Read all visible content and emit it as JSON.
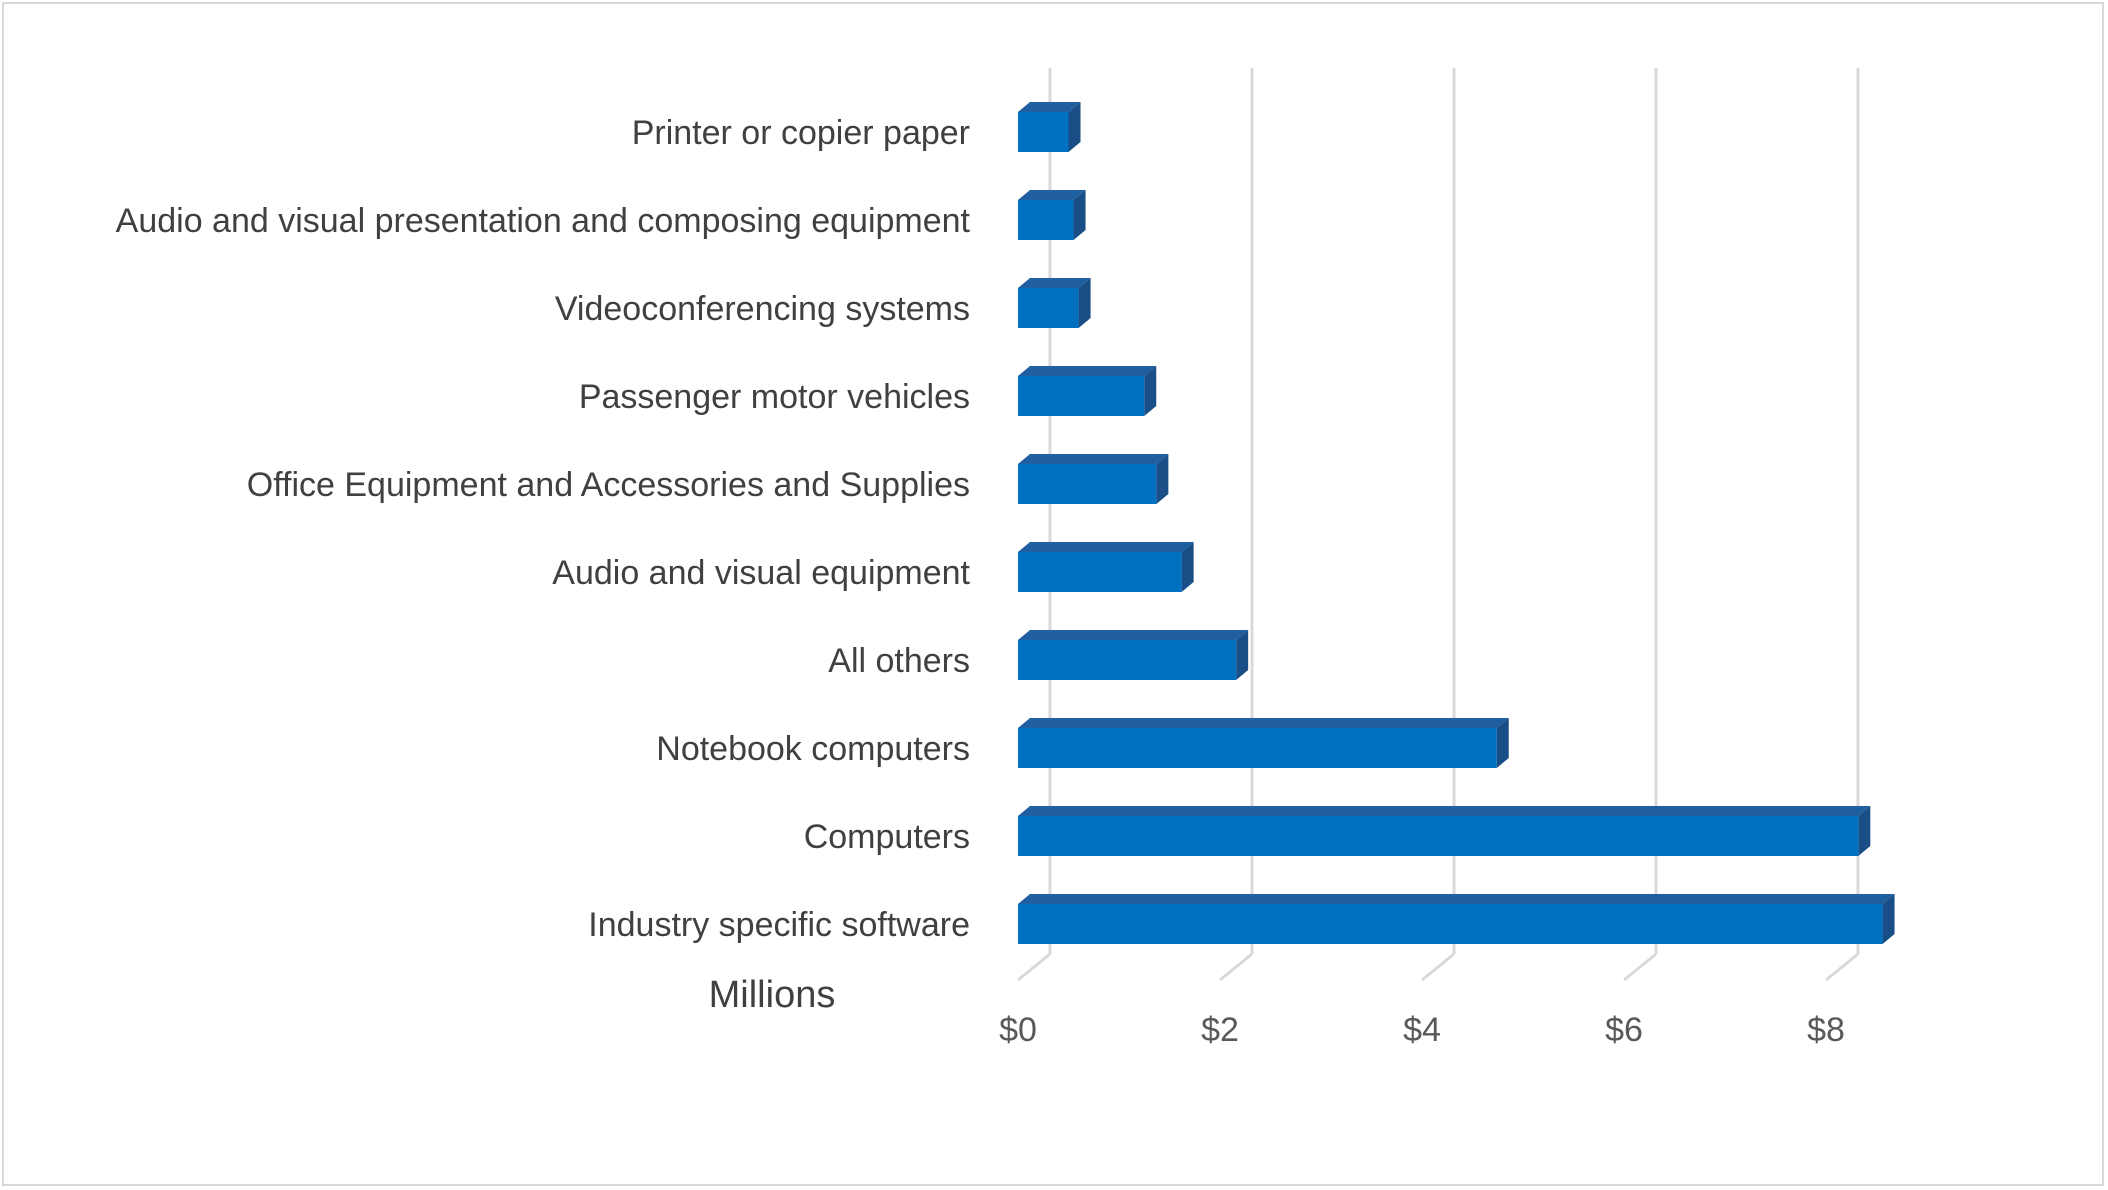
{
  "chart_data": {
    "type": "bar",
    "orientation": "horizontal",
    "style": "3d-bar",
    "categories": [
      "Printer or copier paper",
      "Audio and visual presentation and composing equipment",
      "Videoconferencing systems",
      "Passenger motor vehicles",
      "Office Equipment and Accessories and Supplies",
      "Audio and visual equipment",
      "All others",
      "Notebook computers",
      "Computers",
      "Industry specific software"
    ],
    "values": [
      0.5,
      0.55,
      0.6,
      1.25,
      1.37,
      1.62,
      2.16,
      4.74,
      8.32,
      8.56
    ],
    "x_tick_labels": [
      "$0",
      "$2",
      "$4",
      "$6",
      "$8"
    ],
    "x_ticks": [
      0,
      2,
      4,
      6,
      8
    ],
    "xlim": [
      0,
      8.8
    ],
    "unit_label": "Millions",
    "gridlines": true,
    "colors": {
      "bar_front": "#0070C0",
      "bar_top": "#1F5FA0",
      "bar_side": "#1A4E86",
      "gridline": "#D9D9D9",
      "label": "#404040",
      "frame": "#D9D9D9"
    }
  }
}
